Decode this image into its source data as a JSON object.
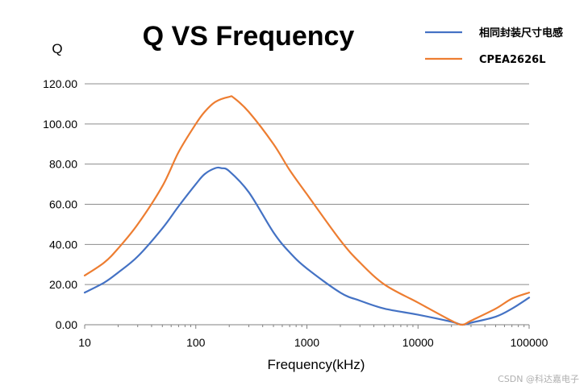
{
  "chart_data": {
    "type": "line",
    "title": "Q VS Frequency",
    "xlabel": "Frequency(kHz)",
    "ylabel": "Q",
    "x_scale": "log",
    "xlim": [
      10,
      100000
    ],
    "ylim": [
      0,
      120
    ],
    "x_ticks": [
      "10",
      "100",
      "1000",
      "10000",
      "100000"
    ],
    "y_ticks": [
      "0.00",
      "20.00",
      "40.00",
      "60.00",
      "80.00",
      "100.00",
      "120.00"
    ],
    "grid": "horizontal",
    "legend_position": "top-right",
    "series": [
      {
        "name": "相同封装尺寸电感",
        "color": "#4472C4",
        "points": [
          [
            10,
            16
          ],
          [
            15,
            21
          ],
          [
            20,
            26
          ],
          [
            30,
            34
          ],
          [
            50,
            48
          ],
          [
            70,
            59
          ],
          [
            100,
            70
          ],
          [
            120,
            75
          ],
          [
            150,
            78
          ],
          [
            170,
            78
          ],
          [
            200,
            76.5
          ],
          [
            300,
            66
          ],
          [
            500,
            46
          ],
          [
            700,
            36
          ],
          [
            1000,
            28
          ],
          [
            2000,
            16
          ],
          [
            3000,
            12
          ],
          [
            5000,
            8
          ],
          [
            10000,
            5
          ],
          [
            20000,
            1.5
          ],
          [
            25000,
            0
          ],
          [
            30000,
            1
          ],
          [
            50000,
            4
          ],
          [
            70000,
            8
          ],
          [
            100000,
            13.5
          ]
        ]
      },
      {
        "name": "CPEA2626L",
        "color": "#ED7D31",
        "points": [
          [
            10,
            24.5
          ],
          [
            15,
            31
          ],
          [
            20,
            38
          ],
          [
            30,
            50
          ],
          [
            50,
            69
          ],
          [
            70,
            86
          ],
          [
            100,
            100
          ],
          [
            120,
            106
          ],
          [
            150,
            111
          ],
          [
            200,
            113.5
          ],
          [
            220,
            113
          ],
          [
            300,
            106
          ],
          [
            500,
            90
          ],
          [
            700,
            77
          ],
          [
            1000,
            65
          ],
          [
            2000,
            42
          ],
          [
            3000,
            31
          ],
          [
            5000,
            20
          ],
          [
            10000,
            11
          ],
          [
            20000,
            2
          ],
          [
            25000,
            0
          ],
          [
            30000,
            2
          ],
          [
            50000,
            8
          ],
          [
            70000,
            13
          ],
          [
            100000,
            16
          ]
        ]
      }
    ]
  },
  "watermark": "CSDN @科达嘉电子"
}
